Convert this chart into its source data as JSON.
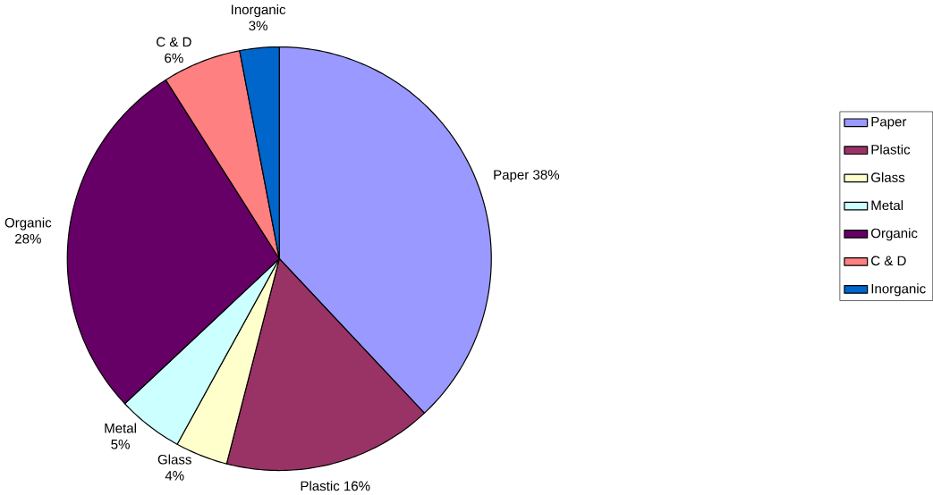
{
  "chart_data": {
    "type": "pie",
    "categories": [
      "Paper",
      "Plastic",
      "Glass",
      "Metal",
      "Organic",
      "C & D",
      "Inorganic"
    ],
    "values": [
      38,
      16,
      4,
      5,
      28,
      6,
      3
    ],
    "value_labels": [
      "38%",
      "16%",
      "4%",
      "5%",
      "28%",
      "6%",
      "3%"
    ],
    "colors": [
      "#9999ff",
      "#993366",
      "#ffffcc",
      "#ccffff",
      "#660066",
      "#ff8080",
      "#0066cc"
    ],
    "legend": "right"
  }
}
